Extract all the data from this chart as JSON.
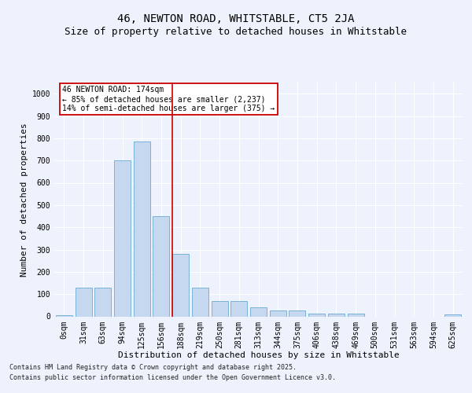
{
  "title_line1": "46, NEWTON ROAD, WHITSTABLE, CT5 2JA",
  "title_line2": "Size of property relative to detached houses in Whitstable",
  "xlabel": "Distribution of detached houses by size in Whitstable",
  "ylabel": "Number of detached properties",
  "bar_color": "#c5d8f0",
  "bar_edge_color": "#6aaad4",
  "categories": [
    "0sqm",
    "31sqm",
    "63sqm",
    "94sqm",
    "125sqm",
    "156sqm",
    "188sqm",
    "219sqm",
    "250sqm",
    "281sqm",
    "313sqm",
    "344sqm",
    "375sqm",
    "406sqm",
    "438sqm",
    "469sqm",
    "500sqm",
    "531sqm",
    "563sqm",
    "594sqm",
    "625sqm"
  ],
  "values": [
    5,
    130,
    130,
    700,
    785,
    450,
    280,
    130,
    70,
    70,
    40,
    25,
    25,
    12,
    12,
    12,
    0,
    0,
    0,
    0,
    8
  ],
  "ylim": [
    0,
    1050
  ],
  "yticks": [
    0,
    100,
    200,
    300,
    400,
    500,
    600,
    700,
    800,
    900,
    1000
  ],
  "vline_x": 5.56,
  "vline_color": "#cc0000",
  "annotation_text": "46 NEWTON ROAD: 174sqm\n← 85% of detached houses are smaller (2,237)\n14% of semi-detached houses are larger (375) →",
  "background_color": "#eef2fc",
  "grid_color": "#ffffff",
  "footer_line1": "Contains HM Land Registry data © Crown copyright and database right 2025.",
  "footer_line2": "Contains public sector information licensed under the Open Government Licence v3.0.",
  "title_fontsize": 10,
  "subtitle_fontsize": 9,
  "tick_fontsize": 7,
  "ylabel_fontsize": 8,
  "xlabel_fontsize": 8,
  "annot_fontsize": 7,
  "footer_fontsize": 6
}
